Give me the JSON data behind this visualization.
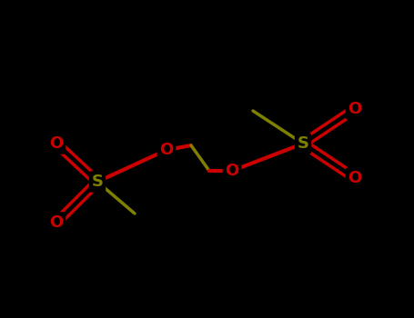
{
  "background_color": "#000000",
  "S_color": "#808000",
  "O_color": "#cc0000",
  "bond_color": "#808000",
  "line_width": 2.5,
  "figsize": [
    4.55,
    3.5
  ],
  "dpi": 100,
  "xlim": [
    0,
    455
  ],
  "ylim": [
    0,
    350
  ]
}
